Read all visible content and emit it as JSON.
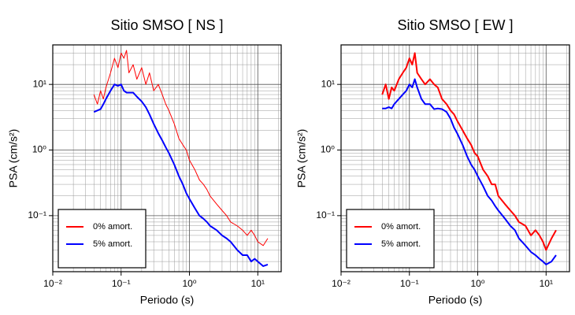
{
  "chart_data": [
    {
      "type": "line",
      "title": "Sitio SMSO [ NS ]",
      "xlabel": "Periodo (s)",
      "ylabel": "PSA (cm/s²)",
      "log_x": true,
      "log_y": true,
      "grid": true,
      "legend": "lower left",
      "xlim": [
        0.01,
        22
      ],
      "ylim": [
        0.014,
        40
      ],
      "xticks": [
        {
          "value": 0.01,
          "label": "10⁻²"
        },
        {
          "value": 0.1,
          "label": "10⁻¹"
        },
        {
          "value": 1,
          "label": "10⁰"
        },
        {
          "value": 10,
          "label": "10¹"
        }
      ],
      "yticks": [
        {
          "value": 0.1,
          "label": "10⁻¹"
        },
        {
          "value": 1,
          "label": "10⁰"
        },
        {
          "value": 10,
          "label": "10¹"
        }
      ],
      "x": [
        0.04,
        0.045,
        0.05,
        0.055,
        0.06,
        0.07,
        0.08,
        0.09,
        0.1,
        0.11,
        0.12,
        0.13,
        0.15,
        0.17,
        0.2,
        0.23,
        0.26,
        0.3,
        0.35,
        0.4,
        0.45,
        0.5,
        0.6,
        0.7,
        0.8,
        0.9,
        1.0,
        1.2,
        1.4,
        1.6,
        1.8,
        2.0,
        2.5,
        3.0,
        3.5,
        4.0,
        5.0,
        6.0,
        7.0,
        8.0,
        9.0,
        10,
        12,
        14
      ],
      "series": [
        {
          "name": "0% amort.",
          "color": "#ff0000",
          "width": 1,
          "values": [
            7,
            5,
            8,
            6,
            9,
            15,
            25,
            18,
            30,
            25,
            33,
            15,
            20,
            12,
            18,
            10,
            15,
            8,
            10,
            7,
            5,
            4,
            2.5,
            1.5,
            1.2,
            1,
            0.7,
            0.5,
            0.35,
            0.3,
            0.25,
            0.2,
            0.15,
            0.12,
            0.1,
            0.08,
            0.07,
            0.06,
            0.05,
            0.06,
            0.05,
            0.04,
            0.035,
            0.045
          ]
        },
        {
          "name": "5% amort.",
          "color": "#0000ff",
          "width": 2,
          "values": [
            3.8,
            4.0,
            4.2,
            5,
            6,
            8,
            10,
            9.5,
            10,
            8,
            7.5,
            7.5,
            7.5,
            6.5,
            5.5,
            4.5,
            3.5,
            2.5,
            1.8,
            1.4,
            1.1,
            0.9,
            0.6,
            0.4,
            0.3,
            0.22,
            0.18,
            0.13,
            0.1,
            0.09,
            0.08,
            0.07,
            0.06,
            0.05,
            0.045,
            0.04,
            0.03,
            0.025,
            0.025,
            0.02,
            0.022,
            0.02,
            0.017,
            0.018
          ]
        }
      ]
    },
    {
      "type": "line",
      "title": "Sitio SMSO [ EW ]",
      "xlabel": "Periodo (s)",
      "ylabel": "PSA (cm/s²)",
      "log_x": true,
      "log_y": true,
      "grid": true,
      "legend": "lower left",
      "xlim": [
        0.01,
        22
      ],
      "ylim": [
        0.014,
        40
      ],
      "xticks": [
        {
          "value": 0.01,
          "label": "10⁻²"
        },
        {
          "value": 0.1,
          "label": "10⁻¹"
        },
        {
          "value": 1,
          "label": "10⁰"
        },
        {
          "value": 10,
          "label": "10¹"
        }
      ],
      "yticks": [
        {
          "value": 0.1,
          "label": "10⁻¹"
        },
        {
          "value": 1,
          "label": "10⁰"
        },
        {
          "value": 10,
          "label": "10¹"
        }
      ],
      "x": [
        0.04,
        0.045,
        0.05,
        0.055,
        0.06,
        0.07,
        0.08,
        0.09,
        0.1,
        0.11,
        0.12,
        0.13,
        0.15,
        0.17,
        0.2,
        0.23,
        0.26,
        0.3,
        0.35,
        0.4,
        0.45,
        0.5,
        0.6,
        0.7,
        0.8,
        0.9,
        1.0,
        1.2,
        1.4,
        1.6,
        1.8,
        2.0,
        2.5,
        3.0,
        3.5,
        4.0,
        5.0,
        6.0,
        7.0,
        8.0,
        9.0,
        10,
        12,
        14
      ],
      "series": [
        {
          "name": "0% amort.",
          "color": "#ff0000",
          "width": 2,
          "values": [
            7,
            10,
            6,
            9,
            8,
            12,
            15,
            18,
            25,
            20,
            30,
            15,
            12,
            10,
            12,
            10,
            9,
            6,
            5,
            4,
            3.5,
            2.8,
            2,
            1.5,
            1.2,
            0.9,
            0.8,
            0.5,
            0.4,
            0.3,
            0.3,
            0.2,
            0.15,
            0.12,
            0.1,
            0.08,
            0.07,
            0.05,
            0.06,
            0.05,
            0.04,
            0.03,
            0.045,
            0.06
          ]
        },
        {
          "name": "5% amort.",
          "color": "#0000ff",
          "width": 2,
          "values": [
            4.3,
            4.3,
            4.5,
            4.3,
            5,
            6,
            7,
            8,
            10,
            9,
            12,
            9,
            6,
            5,
            5,
            4.2,
            4.3,
            4.2,
            3.8,
            3,
            2.2,
            1.8,
            1.2,
            0.8,
            0.6,
            0.5,
            0.4,
            0.28,
            0.2,
            0.17,
            0.14,
            0.12,
            0.09,
            0.07,
            0.06,
            0.045,
            0.035,
            0.028,
            0.025,
            0.022,
            0.02,
            0.018,
            0.02,
            0.025
          ]
        }
      ]
    }
  ]
}
